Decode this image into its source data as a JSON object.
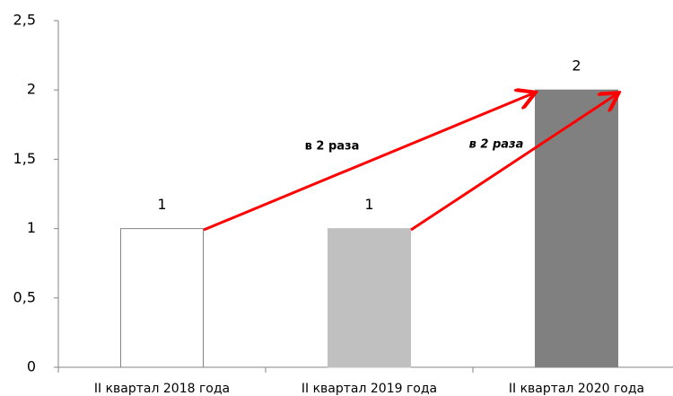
{
  "chart_data": {
    "type": "bar",
    "categories": [
      "II квартал 2018 года",
      "II квартал 2019 года",
      "II квартал 2020 года"
    ],
    "values": [
      1,
      1,
      2
    ],
    "colors": [
      "#ffffff",
      "#c0c0c0",
      "#808080"
    ],
    "ylim": [
      0,
      2.5
    ],
    "yticks": [
      0,
      {
        "value": 0.5,
        "label": "0,5"
      },
      1,
      {
        "value": 1.5,
        "label": "1,5"
      },
      2,
      {
        "value": 2.5,
        "label": "2,5"
      }
    ],
    "grid": false,
    "annotations": [
      "в 2 раза",
      "в 2 раза"
    ]
  }
}
